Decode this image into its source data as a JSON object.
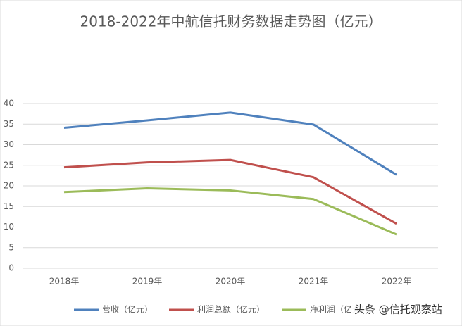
{
  "chart_data": {
    "type": "line",
    "title": "2018-2022年中航信托财务数据走势图（亿元）",
    "categories": [
      "2018年",
      "2019年",
      "2020年",
      "2021年",
      "2022年"
    ],
    "series": [
      {
        "name": "营收（亿元）",
        "color": "#4f81bd",
        "values": [
          34.1,
          35.9,
          37.8,
          34.9,
          22.7
        ]
      },
      {
        "name": "利润总额（亿元）",
        "color": "#c0504d",
        "values": [
          24.5,
          25.7,
          26.3,
          22.1,
          10.8
        ]
      },
      {
        "name": "净利润（亿元）",
        "color": "#9bbb59",
        "values": [
          18.5,
          19.4,
          18.9,
          16.8,
          8.2
        ]
      }
    ],
    "ylim": [
      0,
      40
    ],
    "yticks": [
      0,
      5,
      10,
      15,
      20,
      25,
      30,
      35,
      40
    ],
    "grid": true,
    "legend": "bottom"
  },
  "watermark": "头条 @信托观察站"
}
